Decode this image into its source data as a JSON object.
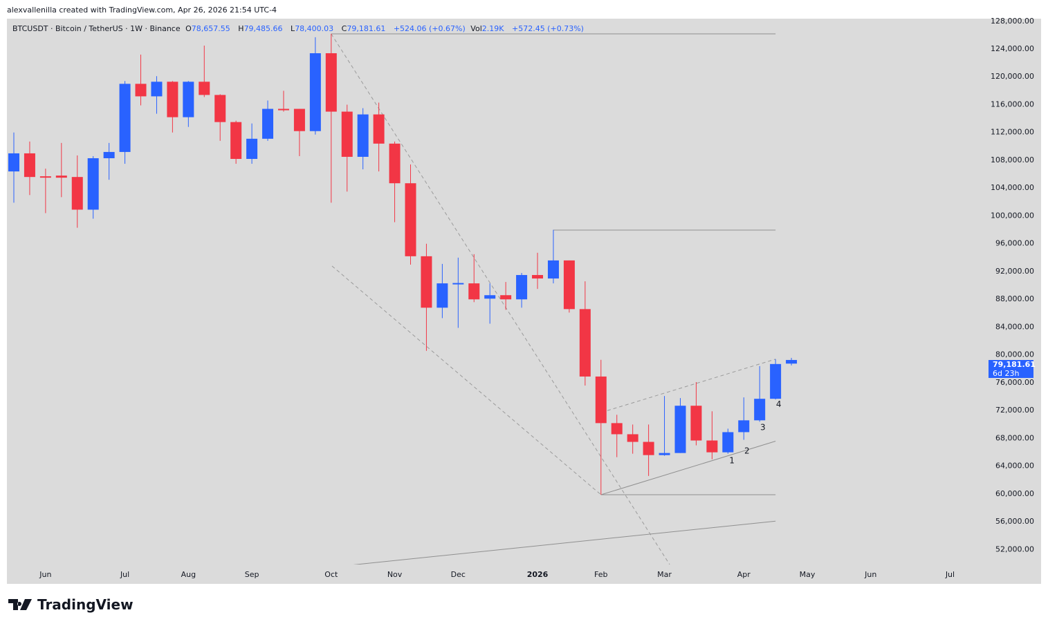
{
  "credit": "alexvallenilla created with TradingView.com, Apr 26, 2026 21:54 UTC-4",
  "legend": {
    "symbol": "BTCUSDT · Bitcoin / TetherUS · 1W · Binance",
    "o_label": "O",
    "o": "78,657.55",
    "h_label": "H",
    "h": "79,485.66",
    "l_label": "L",
    "l": "78,400.03",
    "c_label": "C",
    "c": "79,181.61",
    "change": "+524.06 (+0.67%)",
    "vol_label": "Vol",
    "vol": "2.19K",
    "vol_change": "+572.45 (+0.73%)"
  },
  "price_tag": {
    "price": "79,181.61",
    "countdown": "6d 23h"
  },
  "brand": "TradingView",
  "colors": {
    "up": "#2962ff",
    "down": "#f23645",
    "background": "#dbdbdb",
    "drawing": "#9e9e9e"
  },
  "chart_data": {
    "type": "candlestick",
    "timeframe": "1W",
    "ylim": [
      50000,
      128000
    ],
    "y_ticks": [
      "128,000.00",
      "124,000.00",
      "120,000.00",
      "116,000.00",
      "112,000.00",
      "108,000.00",
      "104,000.00",
      "100,000.00",
      "96,000.00",
      "92,000.00",
      "88,000.00",
      "84,000.00",
      "80,000.00",
      "76,000.00",
      "72,000.00",
      "68,000.00",
      "64,000.00",
      "60,000.00",
      "56,000.00",
      "52,000.00"
    ],
    "x_ticks": [
      {
        "label": "Jun",
        "bar": 2
      },
      {
        "label": "Jul",
        "bar": 7
      },
      {
        "label": "Aug",
        "bar": 11
      },
      {
        "label": "Sep",
        "bar": 15
      },
      {
        "label": "Oct",
        "bar": 20
      },
      {
        "label": "Nov",
        "bar": 24
      },
      {
        "label": "Dec",
        "bar": 28
      },
      {
        "label": "2026",
        "bar": 33
      },
      {
        "label": "Feb",
        "bar": 37
      },
      {
        "label": "Mar",
        "bar": 41
      },
      {
        "label": "Apr",
        "bar": 46
      },
      {
        "label": "May",
        "bar": 50
      },
      {
        "label": "Jun",
        "bar": 54
      },
      {
        "label": "Jul",
        "bar": 59
      }
    ],
    "ohlc": [
      [
        106300,
        111900,
        101800,
        108900
      ],
      [
        108900,
        110600,
        102900,
        105500
      ],
      [
        105600,
        106700,
        100300,
        105500
      ],
      [
        105700,
        110400,
        102600,
        105400
      ],
      [
        105500,
        108600,
        98200,
        100800
      ],
      [
        100800,
        108500,
        99500,
        108200
      ],
      [
        108200,
        110400,
        105100,
        109100
      ],
      [
        109100,
        119300,
        107400,
        118900
      ],
      [
        118900,
        123100,
        115800,
        117100
      ],
      [
        117100,
        120000,
        114600,
        119200
      ],
      [
        119200,
        119300,
        111900,
        114100
      ],
      [
        114100,
        119300,
        112700,
        119200
      ],
      [
        119200,
        124400,
        117000,
        117300
      ],
      [
        117300,
        117400,
        110700,
        113400
      ],
      [
        113400,
        113600,
        107400,
        108100
      ],
      [
        108100,
        113200,
        107400,
        111000
      ],
      [
        111000,
        116500,
        110700,
        115300
      ],
      [
        115300,
        117900,
        114900,
        115100
      ],
      [
        115300,
        115300,
        108500,
        112100
      ],
      [
        112100,
        125600,
        111600,
        123300
      ],
      [
        123300,
        126100,
        101800,
        114900
      ],
      [
        114900,
        115900,
        103400,
        108400
      ],
      [
        108400,
        115400,
        106600,
        114500
      ],
      [
        114500,
        116200,
        106300,
        110300
      ],
      [
        110300,
        110600,
        99000,
        104600
      ],
      [
        104600,
        107300,
        92900,
        94100
      ],
      [
        94100,
        95900,
        80500,
        86700
      ],
      [
        86700,
        93000,
        85200,
        90200
      ],
      [
        90100,
        93900,
        83800,
        90250
      ],
      [
        90200,
        94400,
        87500,
        87900
      ],
      [
        88000,
        90200,
        84400,
        88500
      ],
      [
        88500,
        90400,
        86400,
        87900
      ],
      [
        87900,
        91700,
        86700,
        91400
      ],
      [
        91400,
        94600,
        89400,
        90900
      ],
      [
        90900,
        97900,
        90200,
        93500
      ],
      [
        93500,
        93500,
        86000,
        86500
      ],
      [
        86500,
        90500,
        75500,
        76800
      ],
      [
        76800,
        79200,
        59800,
        70100
      ],
      [
        70100,
        71300,
        65200,
        68500
      ],
      [
        68500,
        69900,
        65700,
        67400
      ],
      [
        67400,
        69900,
        62500,
        65500
      ],
      [
        65500,
        74000,
        65400,
        65800
      ],
      [
        65800,
        73700,
        65800,
        72600
      ],
      [
        72600,
        76000,
        66900,
        67600
      ],
      [
        67600,
        71800,
        64900,
        65900
      ],
      [
        65900,
        69300,
        65700,
        68800
      ],
      [
        68800,
        73800,
        67700,
        70500
      ],
      [
        70500,
        78300,
        70300,
        73600
      ],
      [
        73600,
        79300,
        73500,
        78600
      ],
      [
        78657.55,
        79485.66,
        78400.03,
        79181.61
      ]
    ],
    "drawings": [
      {
        "kind": "hline",
        "from": [
          20,
          126087
        ],
        "to": [
          48,
          126087
        ]
      },
      {
        "kind": "hline",
        "from": [
          34,
          97860
        ],
        "to": [
          48,
          97860
        ]
      },
      {
        "kind": "hline",
        "from": [
          37,
          59800
        ],
        "to": [
          48,
          59800
        ]
      },
      {
        "kind": "dashed",
        "from": [
          20,
          126087
        ],
        "to": [
          41.4,
          49500
        ]
      },
      {
        "kind": "dashed",
        "from": [
          20.05,
          92700
        ],
        "to": [
          37,
          59800
        ]
      },
      {
        "kind": "dashed",
        "from": [
          37.4,
          71900
        ],
        "to": [
          48,
          79300
        ]
      },
      {
        "kind": "line",
        "from": [
          37,
          59800
        ],
        "to": [
          48,
          67500
        ]
      },
      {
        "kind": "line",
        "from": [
          20.9,
          49600
        ],
        "to": [
          48,
          56000
        ]
      }
    ],
    "annotations": [
      {
        "text": "1",
        "at": [
          45.25,
          64300
        ]
      },
      {
        "text": "2",
        "at": [
          46.2,
          65700
        ]
      },
      {
        "text": "3",
        "at": [
          47.2,
          69100
        ]
      },
      {
        "text": "4",
        "at": [
          48.2,
          72400
        ]
      }
    ]
  }
}
